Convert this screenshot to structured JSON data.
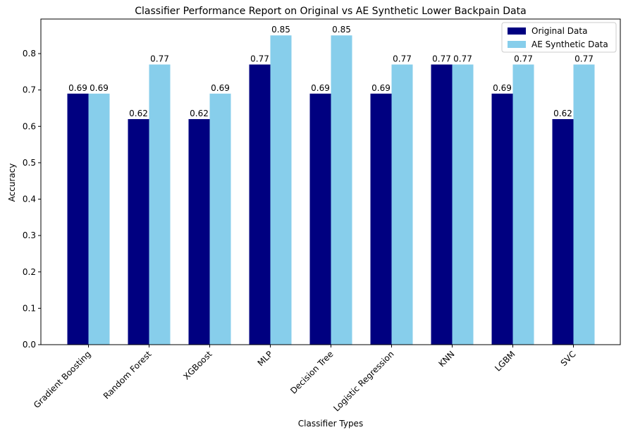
{
  "chart_data": {
    "type": "bar",
    "title": "Classifier Performance Report on Original vs AE Synthetic Lower Backpain Data",
    "xlabel": "Classifier Types",
    "ylabel": "Accuracy",
    "ylim": [
      0,
      0.895
    ],
    "yticks": [
      0.0,
      0.1,
      0.2,
      0.3,
      0.4,
      0.5,
      0.6,
      0.7,
      0.8
    ],
    "ytick_labels": [
      "0.0",
      "0.1",
      "0.2",
      "0.3",
      "0.4",
      "0.5",
      "0.6",
      "0.7",
      "0.8"
    ],
    "categories": [
      "Gradient Boosting",
      "Random Forest",
      "XGBoost",
      "MLP",
      "Decision Tree",
      "Logistic Regression",
      "KNN",
      "LGBM",
      "SVC"
    ],
    "series": [
      {
        "name": "Original Data",
        "color": "#000080",
        "values": [
          0.69,
          0.62,
          0.62,
          0.77,
          0.69,
          0.69,
          0.77,
          0.69,
          0.62
        ],
        "labels": [
          "0.69",
          "0.62",
          "0.62",
          "0.77",
          "0.69",
          "0.69",
          "0.77",
          "0.69",
          "0.62"
        ]
      },
      {
        "name": "AE Synthetic Data",
        "color": "#87CEEB",
        "values": [
          0.69,
          0.77,
          0.69,
          0.85,
          0.85,
          0.77,
          0.77,
          0.77,
          0.77
        ],
        "labels": [
          "0.69",
          "0.77",
          "0.69",
          "0.85",
          "0.85",
          "0.77",
          "0.77",
          "0.77",
          "0.77"
        ]
      }
    ],
    "legend": "top-right",
    "grid": false
  }
}
